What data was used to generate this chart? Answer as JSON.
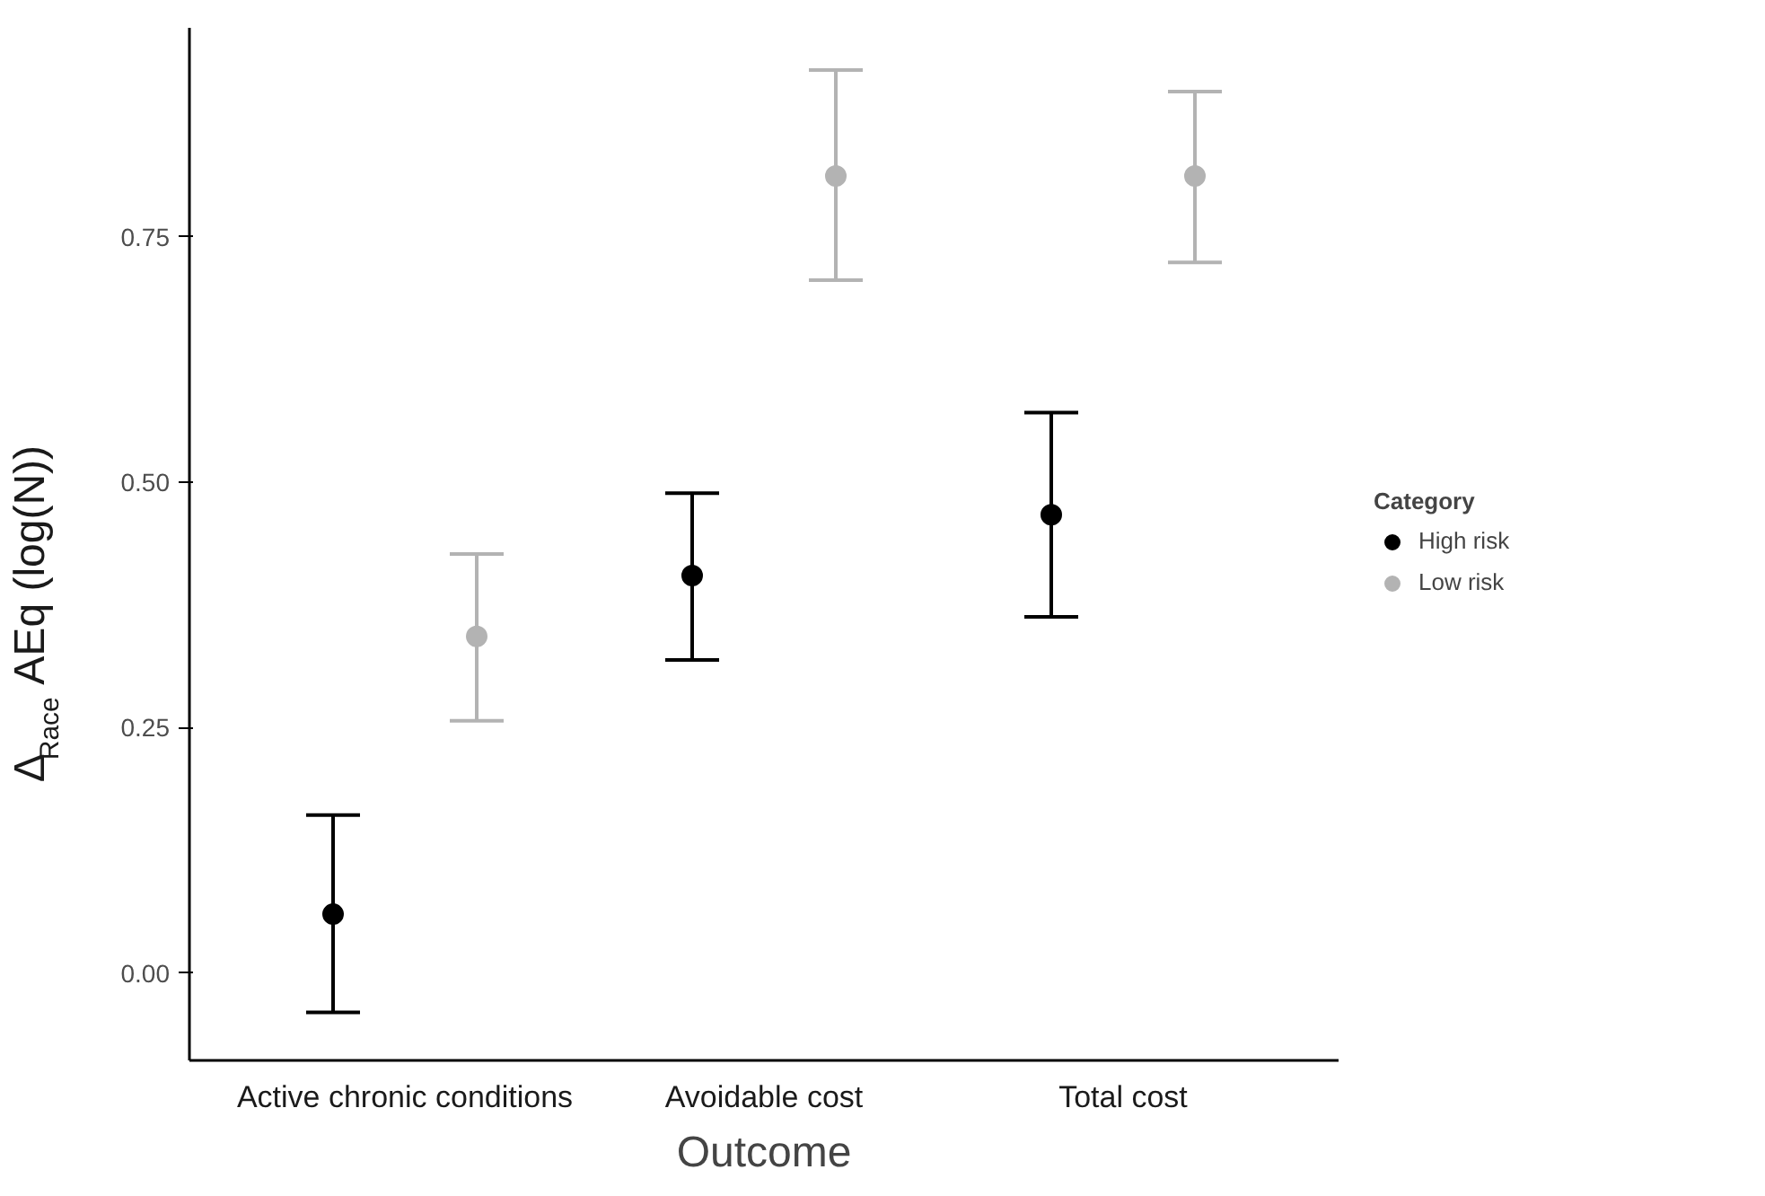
{
  "chart_data": {
    "type": "scatter",
    "xlabel": "Outcome",
    "ylabel": "Δ$_{Race}$ AEq (log(N))",
    "legend_title": "Category",
    "categories": [
      "Active chronic conditions",
      "Avoidable cost",
      "Total cost"
    ],
    "series": [
      {
        "name": "High risk",
        "color": "#000000",
        "values": [
          0.06,
          0.405,
          0.467
        ],
        "errors": [
          [
            -0.04,
            0.161
          ],
          [
            0.319,
            0.489
          ],
          [
            0.363,
            0.571
          ]
        ]
      },
      {
        "name": "Low risk",
        "color": "#b3b3b3",
        "values": [
          0.343,
          0.812,
          0.812
        ],
        "errors": [
          [
            0.257,
            0.427
          ],
          [
            0.706,
            0.92
          ],
          [
            0.724,
            0.898
          ]
        ]
      }
    ],
    "ylim": [
      -0.089,
      0.963
    ],
    "yticks": [
      {
        "value": 0,
        "label": "0.00"
      },
      0.25,
      {
        "value": 0.5,
        "label": "0.50"
      },
      0.75
    ],
    "grid": false,
    "legend": "right",
    "marker": "circle"
  }
}
